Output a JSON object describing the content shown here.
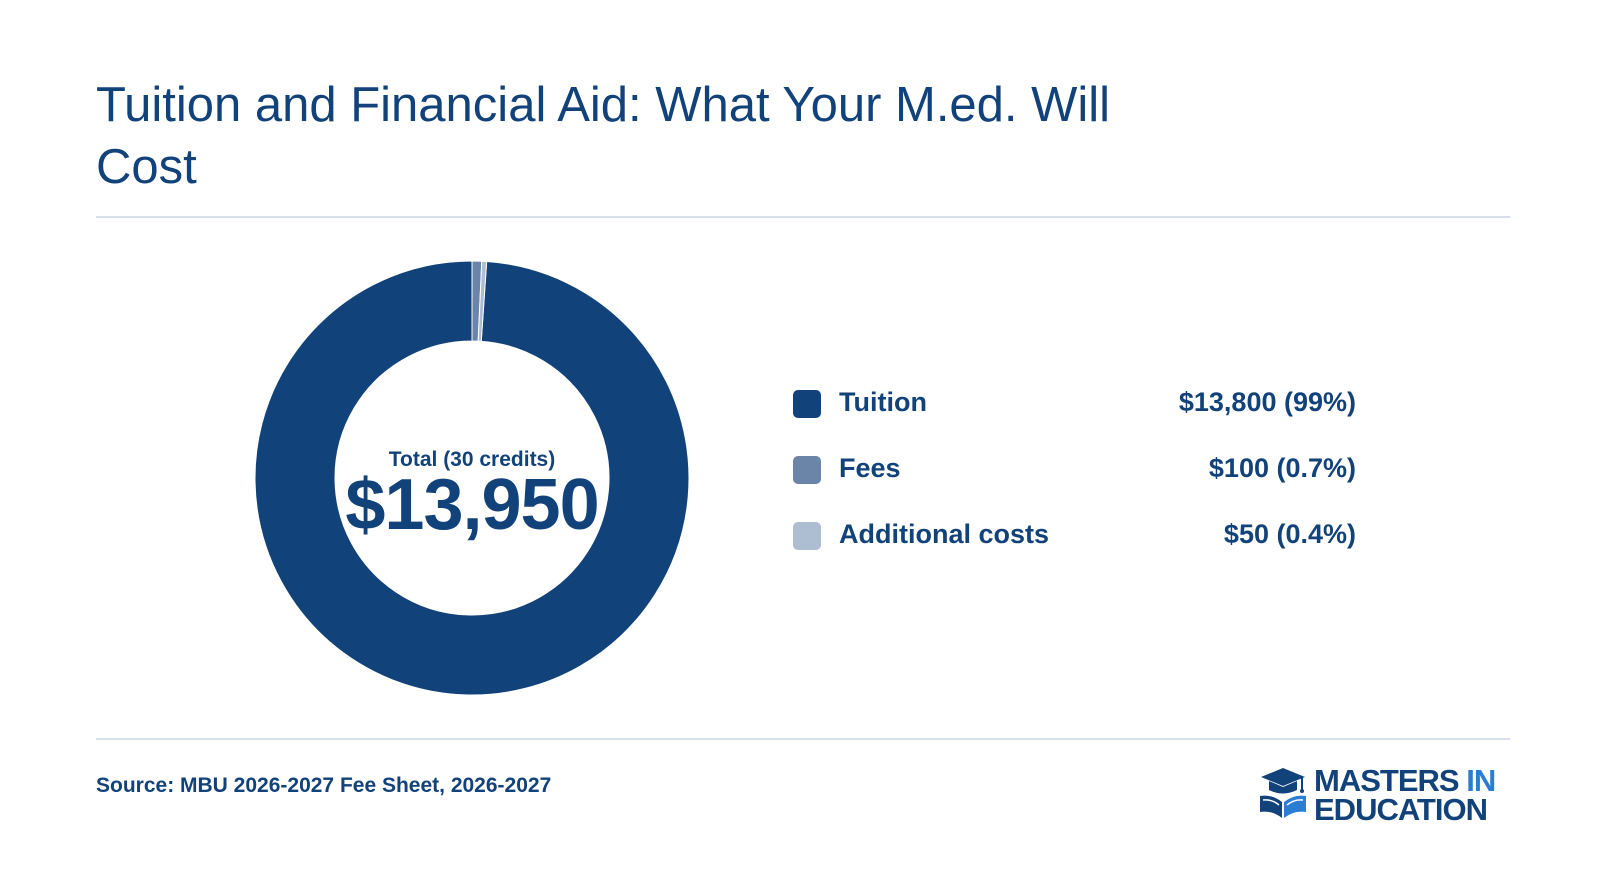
{
  "title": "Tuition and Financial Aid: What Your M.ed. Will Cost",
  "chart_data": {
    "type": "pie",
    "categories": [
      "Tuition",
      "Fees",
      "Additional costs"
    ],
    "values": [
      13800,
      100,
      50
    ],
    "value_labels": [
      "$13,800 (99%)",
      "$100 (0.7%)",
      "$50 (0.4%)"
    ],
    "colors": [
      "#12427a",
      "#6b85a8",
      "#adbdd2"
    ],
    "center_label": "Total (30 credits)",
    "center_value": "$13,950",
    "legend_position": "right"
  },
  "source": "Source: MBU 2026-2027 Fee Sheet, 2026-2027",
  "logo": {
    "line1_a": "MASTERS",
    "line1_b": "IN",
    "line2": "EDUCATION",
    "icon": "graduation-cap-book-icon"
  }
}
